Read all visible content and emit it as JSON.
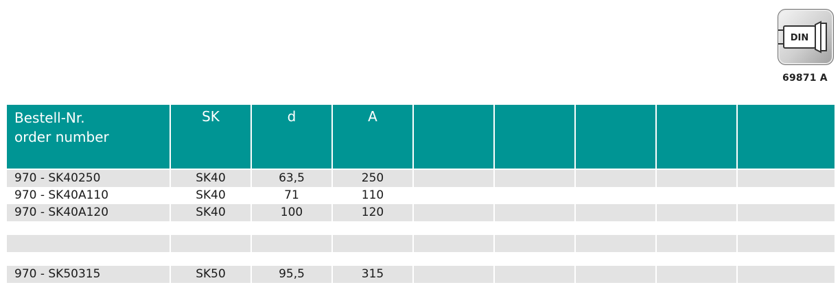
{
  "din_badge": {
    "icon": "din-collet-chuck-icon",
    "label": "DIN",
    "code": "69871 A"
  },
  "table": {
    "headers": {
      "order_line1": "Bestell-Nr.",
      "order_line2": "order number",
      "sk": "SK",
      "d": "d",
      "a": "A"
    },
    "rows": [
      {
        "order": "970 - SK40250",
        "sk": "SK40",
        "d": "63,5",
        "a": "250"
      },
      {
        "order": "970 - SK40A110",
        "sk": "SK40",
        "d": "71",
        "a": "110"
      },
      {
        "order": "970 - SK40A120",
        "sk": "SK40",
        "d": "100",
        "a": "120"
      },
      {
        "order": "970 - SK50315",
        "sk": "SK50",
        "d": "95,5",
        "a": "315"
      }
    ]
  },
  "colors": {
    "header_bg": "#009594",
    "stripe_bg": "#e3e3e3"
  }
}
